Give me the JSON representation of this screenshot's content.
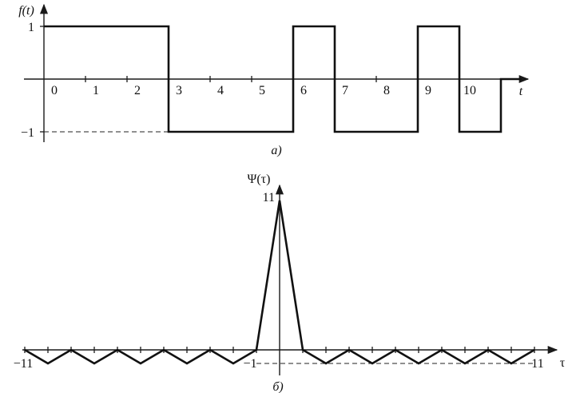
{
  "chart_data": [
    {
      "type": "line",
      "panel_label": "а)",
      "ylabel": "f(t)",
      "xlabel": "t",
      "x_ticks": [
        "0",
        "1",
        "2",
        "3",
        "4",
        "5",
        "6",
        "7",
        "8",
        "9",
        "10"
      ],
      "y_ticks": [
        "1",
        "−1"
      ],
      "series": [
        {
          "step": true,
          "x": [
            0,
            3,
            3,
            6,
            6,
            7,
            7,
            9,
            9,
            10,
            10,
            11,
            11,
            11.5
          ],
          "y": [
            1,
            1,
            -1,
            -1,
            1,
            1,
            -1,
            -1,
            1,
            1,
            -1,
            -1,
            0,
            0
          ]
        }
      ],
      "dashed_reference_y": -1,
      "xlim": [
        0,
        11.5
      ],
      "ylim": [
        -1.3,
        1.3
      ]
    },
    {
      "type": "line",
      "panel_label": "б)",
      "ylabel": "Ψ(τ)",
      "xlabel": "τ",
      "x_ticks": [
        "−11",
        "−1",
        "11"
      ],
      "y_ticks": [
        "11"
      ],
      "series": [
        {
          "x": [
            -11,
            -10,
            -9,
            -8,
            -7,
            -6,
            -5,
            -4,
            -3,
            -2,
            -1,
            0,
            1,
            2,
            3,
            4,
            5,
            6,
            7,
            8,
            9,
            10,
            11
          ],
          "y": [
            0,
            -1,
            0,
            -1,
            0,
            -1,
            0,
            -1,
            0,
            -1,
            0,
            11,
            0,
            -1,
            0,
            -1,
            0,
            -1,
            0,
            -1,
            0,
            -1,
            0
          ]
        }
      ],
      "dashed_reference_y": -1,
      "xlim": [
        -11,
        12
      ],
      "ylim": [
        -1.5,
        12
      ]
    }
  ]
}
